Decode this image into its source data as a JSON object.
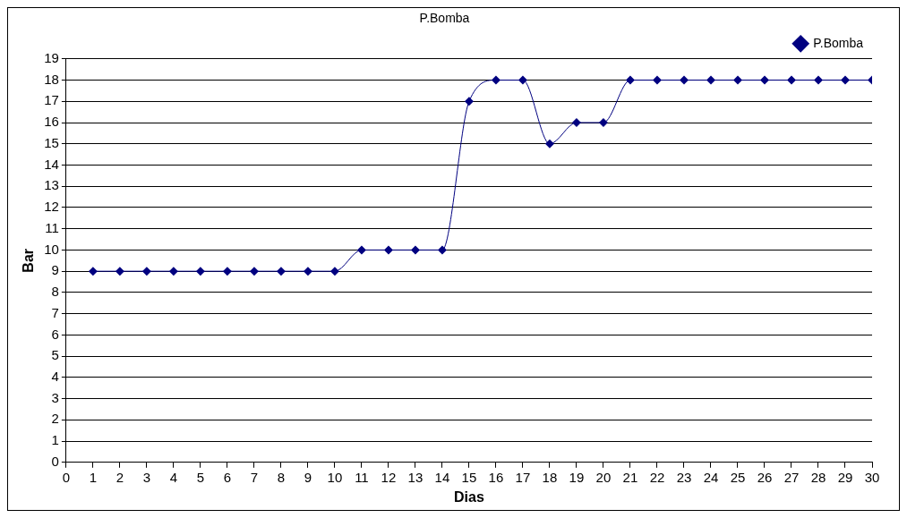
{
  "chart_data": {
    "type": "line",
    "title": "P.Bomba",
    "xlabel": "Dias",
    "ylabel": "Bar",
    "x": [
      1,
      2,
      3,
      4,
      5,
      6,
      7,
      8,
      9,
      10,
      11,
      12,
      13,
      14,
      15,
      16,
      17,
      18,
      19,
      20,
      21,
      22,
      23,
      24,
      25,
      26,
      27,
      28,
      29,
      30
    ],
    "series": [
      {
        "name": "P.Bomba",
        "color": "#000080",
        "values": [
          9,
          9,
          9,
          9,
          9,
          9,
          9,
          9,
          9,
          9,
          10,
          10,
          10,
          10,
          17,
          18,
          18,
          15,
          16,
          16,
          18,
          18,
          18,
          18,
          18,
          18,
          18,
          18,
          18,
          18
        ]
      }
    ],
    "xlim": [
      0,
      30
    ],
    "xticks": [
      0,
      1,
      2,
      3,
      4,
      5,
      6,
      7,
      8,
      9,
      10,
      11,
      12,
      13,
      14,
      15,
      16,
      17,
      18,
      19,
      20,
      21,
      22,
      23,
      24,
      25,
      26,
      27,
      28,
      29,
      30
    ],
    "ylim": [
      0,
      19
    ],
    "yticks": [
      0,
      1,
      2,
      3,
      4,
      5,
      6,
      7,
      8,
      9,
      10,
      11,
      12,
      13,
      14,
      15,
      16,
      17,
      18,
      19
    ],
    "grid": "y",
    "legend": "top right",
    "marker": "diamond",
    "line_style": "solid"
  }
}
